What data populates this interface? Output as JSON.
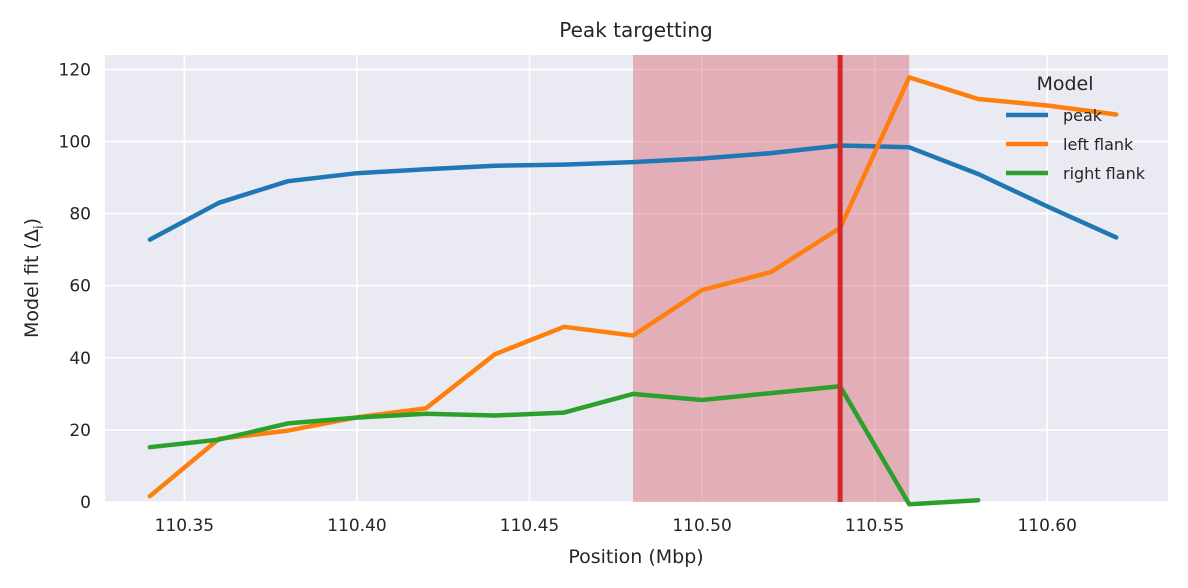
{
  "chart_data": {
    "type": "line",
    "title": "Peak targetting",
    "xlabel": "Position (Mbp)",
    "ylabel": "Model fit (Δ",
    "ylabel_sub": "i",
    "ylabel_end": ")",
    "xlim": [
      110.327,
      110.635
    ],
    "ylim": [
      0,
      124
    ],
    "xticks": [
      110.35,
      110.4,
      110.45,
      110.5,
      110.55,
      110.6
    ],
    "xtick_labels": [
      "110.35",
      "110.40",
      "110.45",
      "110.50",
      "110.55",
      "110.60"
    ],
    "yticks": [
      0,
      20,
      40,
      60,
      80,
      100,
      120
    ],
    "ytick_labels": [
      "0",
      "20",
      "40",
      "60",
      "80",
      "100",
      "120"
    ],
    "grid": true,
    "background": "#eaeaf2",
    "legend": {
      "title": "Model",
      "placement": "top-right"
    },
    "highlight_region": {
      "x_start": 110.48,
      "x_end": 110.56,
      "color": "#d9676e"
    },
    "marker_line": {
      "x": 110.54,
      "color": "#d62728"
    },
    "x": [
      110.34,
      110.36,
      110.38,
      110.4,
      110.42,
      110.44,
      110.46,
      110.48,
      110.5,
      110.52,
      110.54,
      110.56,
      110.58,
      110.6,
      110.62
    ],
    "series": [
      {
        "name": "peak",
        "color": "#1f77b4",
        "values": [
          72.8,
          83,
          89,
          91.2,
          92.3,
          93.3,
          93.6,
          94.3,
          95.3,
          96.8,
          98.9,
          98.4,
          91,
          82,
          73.4
        ]
      },
      {
        "name": "left flank",
        "color": "#ff7f0e",
        "values": [
          1.6,
          17.5,
          19.8,
          23.5,
          26,
          41,
          48.6,
          46.2,
          58.8,
          63.8,
          76,
          117.8,
          111.8,
          110,
          107.5
        ]
      },
      {
        "name": "right flank",
        "color": "#2ca02c",
        "values": [
          15.2,
          17.3,
          21.8,
          23.4,
          24.5,
          24,
          24.8,
          30,
          28.3,
          30.2,
          32.1,
          -0.6,
          0.5,
          null,
          null
        ]
      }
    ]
  }
}
